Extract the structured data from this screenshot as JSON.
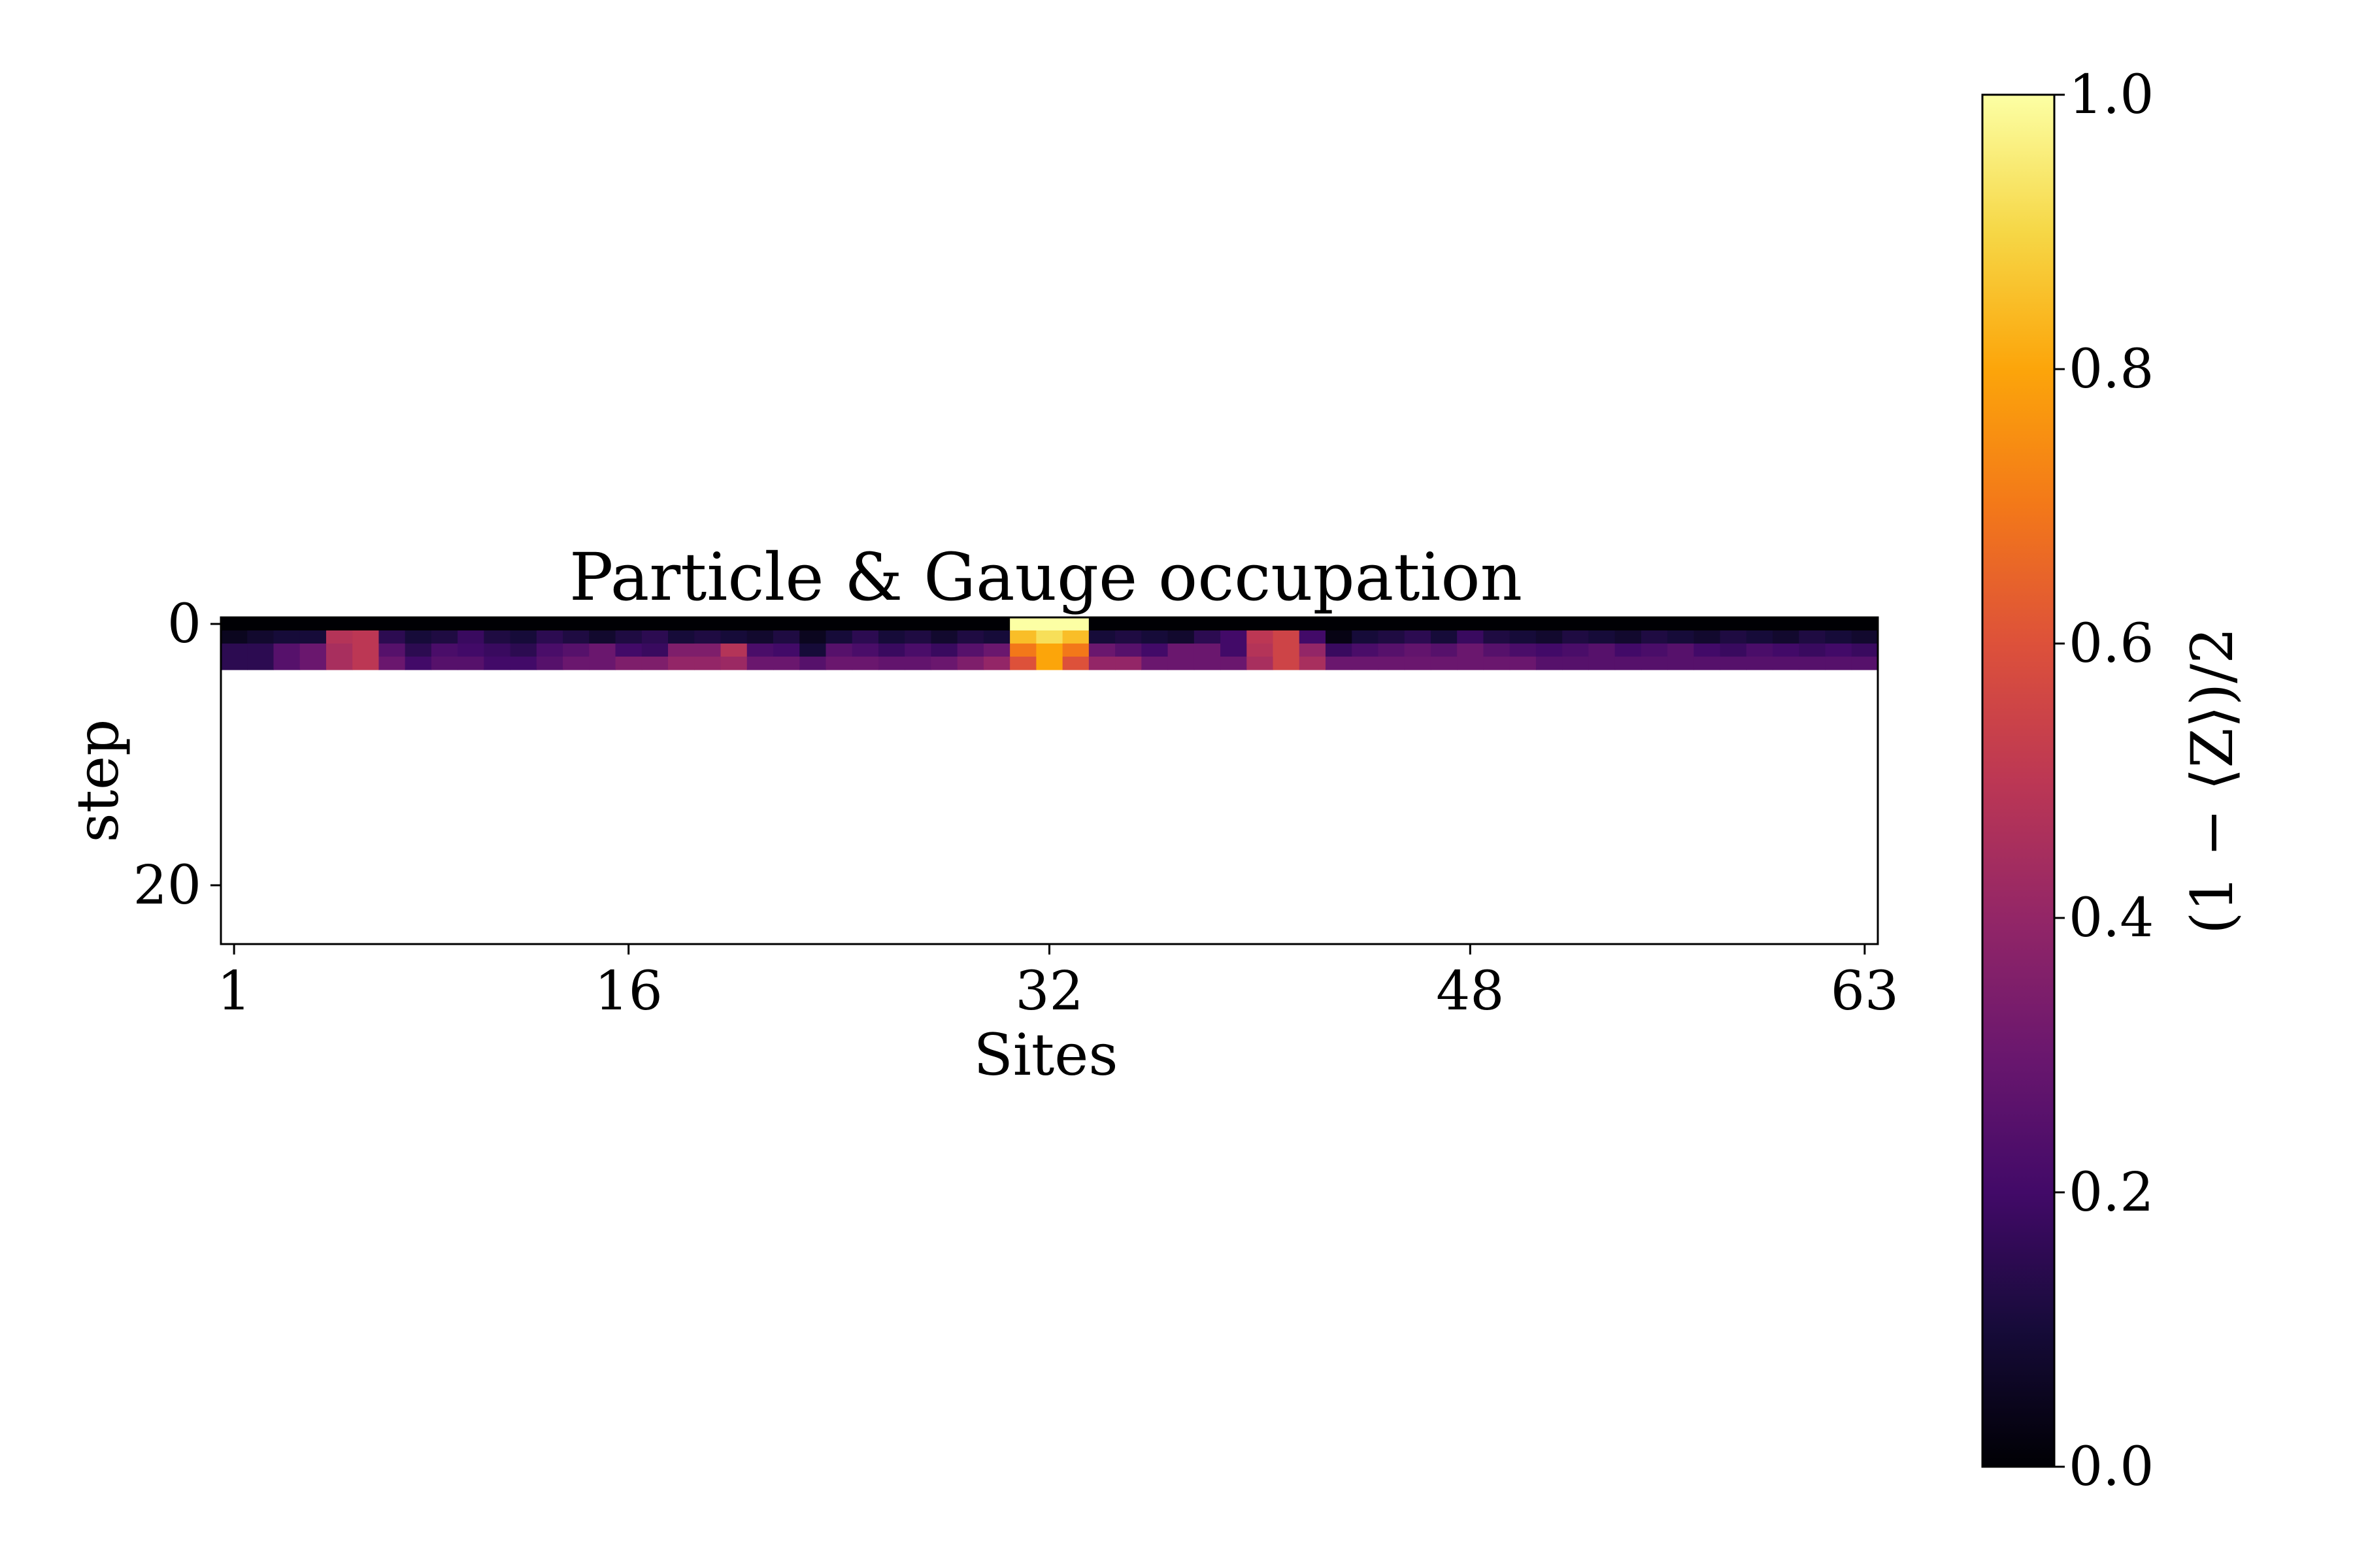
{
  "chart_data": {
    "type": "heatmap",
    "title": "Particle & Gauge occupation",
    "xlabel": "Sites",
    "ylabel": "step",
    "colorbar_label": "(1 − ⟨Z⟩)/2",
    "colormap": "inferno",
    "x_ticks": [
      "1",
      "16",
      "32",
      "48",
      "63"
    ],
    "y_ticks": [
      "0",
      "20"
    ],
    "colorbar_ticks": [
      "0.0",
      "0.2",
      "0.4",
      "0.6",
      "0.8",
      "1.0"
    ],
    "xlim": [
      1,
      63
    ],
    "ylim": [
      24.5,
      -0.5
    ],
    "clim": [
      0,
      1
    ],
    "grid": false,
    "rows": [
      [
        0.0,
        0.0,
        0.0,
        0.0,
        0.0,
        0.0,
        0.0,
        0.0,
        0.0,
        0.0,
        0.0,
        0.0,
        0.0,
        0.0,
        0.0,
        0.0,
        0.0,
        0.0,
        0.0,
        0.0,
        0.0,
        0.0,
        0.0,
        0.0,
        0.0,
        0.0,
        0.0,
        0.0,
        0.0,
        0.0,
        1.0,
        1.0,
        1.0,
        0.0,
        0.0,
        0.0,
        0.0,
        0.0,
        0.0,
        0.0,
        0.0,
        0.0,
        0.0,
        0.0,
        0.0,
        0.0,
        0.0,
        0.0,
        0.0,
        0.0,
        0.0,
        0.0,
        0.0,
        0.0,
        0.0,
        0.0,
        0.0,
        0.0,
        0.0,
        0.0,
        0.0,
        0.0,
        0.0
      ],
      [
        0.05,
        0.08,
        0.1,
        0.1,
        0.48,
        0.5,
        0.15,
        0.1,
        0.12,
        0.18,
        0.12,
        0.1,
        0.15,
        0.12,
        0.08,
        0.12,
        0.15,
        0.1,
        0.12,
        0.1,
        0.08,
        0.12,
        0.05,
        0.1,
        0.15,
        0.1,
        0.12,
        0.08,
        0.12,
        0.1,
        0.85,
        0.92,
        0.85,
        0.1,
        0.12,
        0.1,
        0.08,
        0.15,
        0.2,
        0.5,
        0.55,
        0.2,
        0.03,
        0.1,
        0.12,
        0.15,
        0.1,
        0.18,
        0.12,
        0.1,
        0.08,
        0.12,
        0.1,
        0.08,
        0.12,
        0.1,
        0.08,
        0.12,
        0.1,
        0.08,
        0.12,
        0.1,
        0.08
      ],
      [
        0.15,
        0.15,
        0.25,
        0.3,
        0.45,
        0.5,
        0.25,
        0.15,
        0.22,
        0.2,
        0.18,
        0.15,
        0.22,
        0.25,
        0.3,
        0.2,
        0.18,
        0.35,
        0.35,
        0.48,
        0.22,
        0.2,
        0.1,
        0.25,
        0.22,
        0.18,
        0.22,
        0.18,
        0.25,
        0.3,
        0.7,
        0.8,
        0.7,
        0.3,
        0.25,
        0.2,
        0.3,
        0.3,
        0.2,
        0.48,
        0.55,
        0.4,
        0.18,
        0.22,
        0.25,
        0.28,
        0.25,
        0.3,
        0.25,
        0.22,
        0.2,
        0.22,
        0.25,
        0.2,
        0.22,
        0.25,
        0.2,
        0.18,
        0.22,
        0.2,
        0.18,
        0.2,
        0.18
      ],
      [
        0.15,
        0.15,
        0.25,
        0.3,
        0.45,
        0.5,
        0.3,
        0.2,
        0.25,
        0.25,
        0.2,
        0.2,
        0.25,
        0.3,
        0.3,
        0.35,
        0.35,
        0.4,
        0.4,
        0.42,
        0.3,
        0.3,
        0.25,
        0.3,
        0.3,
        0.28,
        0.28,
        0.3,
        0.35,
        0.4,
        0.6,
        0.8,
        0.6,
        0.4,
        0.4,
        0.3,
        0.3,
        0.3,
        0.3,
        0.45,
        0.55,
        0.45,
        0.3,
        0.3,
        0.3,
        0.3,
        0.3,
        0.3,
        0.3,
        0.3,
        0.25,
        0.25,
        0.25,
        0.25,
        0.25,
        0.25,
        0.25,
        0.25,
        0.25,
        0.25,
        0.25,
        0.25,
        0.25
      ]
    ]
  }
}
